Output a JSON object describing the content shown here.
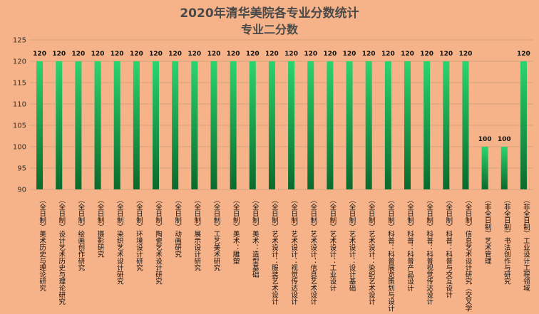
{
  "chart_data": {
    "type": "bar",
    "title": "2020年清华美院各专业分数统计",
    "subtitle": "专业二分数",
    "xlabel": "",
    "ylabel": "",
    "ylim": [
      90,
      125
    ],
    "yticks": [
      90,
      95,
      100,
      105,
      110,
      115,
      120,
      125
    ],
    "grid": true,
    "legend": "none",
    "bar_gradient": [
      "#2bd46f",
      "#0a6a2c"
    ],
    "categories": [
      "（全日制）美术历史与理论研究",
      "（全日制）设计艺术历史与理论研究",
      "（全日制）绘画创作研究",
      "（全日制）摄影研究",
      "（全日制）染织艺术设计研究",
      "（全日制）环境设计研究",
      "（全日制）陶瓷艺术设计研究",
      "（全日制）动画研究",
      "（全日制）展示设计研究",
      "（全日制）工艺美术研究",
      "（全日制）美术：雕塑",
      "（全日制）美术：造型基础",
      "（全日制）艺术设计：服装艺术设计",
      "（全日制）艺术设计：视觉传达设计",
      "（全日制）艺术设计：信息艺术设计",
      "（全日制）艺术设计：工业设计",
      "（全日制）艺术设计：设计基础",
      "（全日制）艺术设计：染织艺术设计",
      "（全日制）科普：科普展览策划与设计",
      "（全日制）科普：科普产品设计",
      "（全日制）科普：科普视觉传达设计",
      "（全日制）科普：科普与交互设计",
      "（全日制）信息艺术设计研究（交叉学",
      "（非全日制）艺术管理",
      "（非全日制）书法创作与研究",
      "（非全日制）工业设计工程领域"
    ],
    "values": [
      120,
      120,
      120,
      120,
      120,
      120,
      120,
      120,
      120,
      120,
      120,
      120,
      120,
      120,
      120,
      120,
      120,
      120,
      120,
      120,
      120,
      120,
      120,
      100,
      100,
      120
    ]
  }
}
